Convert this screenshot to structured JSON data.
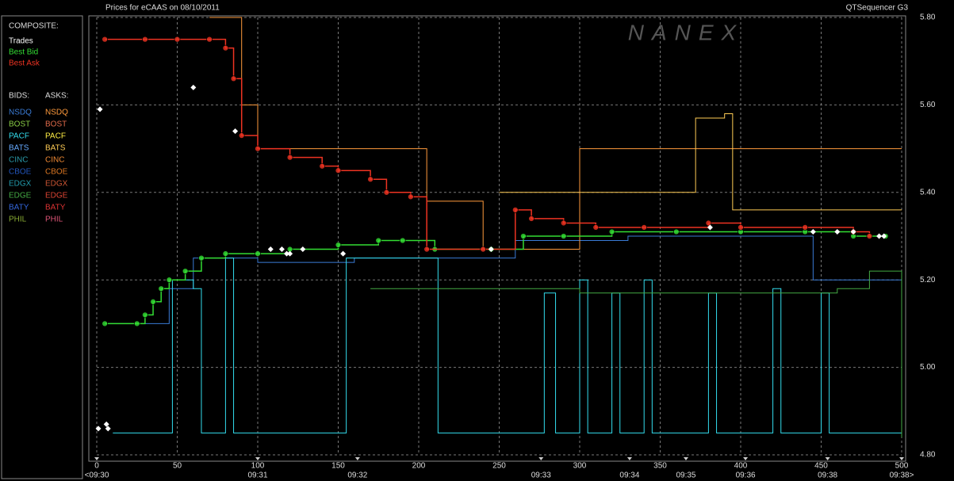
{
  "chart_data": {
    "type": "line",
    "title": "Prices for  eCAAS  on  08/10/2011",
    "subtitle": "QTSequencer G3",
    "watermark": "NANEX",
    "xlim": [
      0,
      500
    ],
    "xticks": [
      0,
      50,
      100,
      150,
      200,
      250,
      300,
      350,
      400,
      450,
      500
    ],
    "time_labels": [
      {
        "value": 0,
        "label": "<09:30"
      },
      {
        "value": 100,
        "label": "09:31"
      },
      {
        "value": 162,
        "label": "09:32"
      },
      {
        "value": 276,
        "label": "09:33"
      },
      {
        "value": 331,
        "label": "09:34"
      },
      {
        "value": 366,
        "label": "09:35"
      },
      {
        "value": 403,
        "label": "09:36"
      },
      {
        "value": 454,
        "label": "09:38"
      },
      {
        "value": 500,
        "label": "09:38>"
      }
    ],
    "ylim": [
      4.8,
      5.8
    ],
    "yticks": [
      {
        "value": 4.8,
        "label": "4.80"
      },
      {
        "value": 5.0,
        "label": "5.00"
      },
      {
        "value": 5.2,
        "label": "5.20"
      },
      {
        "value": 5.4,
        "label": "5.40"
      },
      {
        "value": 5.6,
        "label": "5.60"
      },
      {
        "value": 5.8,
        "label": "5.80"
      }
    ],
    "grid": true,
    "legend_heading": "COMPOSITE:",
    "bids_heading": "BIDS:",
    "asks_heading": "ASKS:",
    "series": [
      {
        "name": "Trades",
        "type": "scatter",
        "color": "#ffffff",
        "x": [
          1,
          6,
          7,
          2,
          60,
          86,
          108,
          115,
          118,
          120,
          128,
          153,
          245,
          381,
          445,
          460,
          470,
          486,
          489
        ],
        "values": [
          4.86,
          4.87,
          4.86,
          5.59,
          5.64,
          5.54,
          5.27,
          5.27,
          5.26,
          5.26,
          5.27,
          5.26,
          5.27,
          5.32,
          5.31,
          5.31,
          5.31,
          5.3,
          5.3
        ]
      },
      {
        "name": "Best Bid",
        "type": "line",
        "color": "#33dd33",
        "markers": true,
        "x": [
          5,
          25,
          30,
          35,
          40,
          45,
          55,
          65,
          80,
          100,
          120,
          150,
          175,
          190,
          210,
          245,
          265,
          290,
          320,
          360,
          400,
          440,
          470,
          490
        ],
        "values": [
          5.1,
          5.1,
          5.12,
          5.15,
          5.18,
          5.2,
          5.22,
          5.25,
          5.26,
          5.26,
          5.27,
          5.28,
          5.29,
          5.29,
          5.27,
          5.27,
          5.3,
          5.3,
          5.31,
          5.31,
          5.31,
          5.31,
          5.3,
          5.3
        ]
      },
      {
        "name": "Best Ask",
        "type": "line",
        "color": "#ee3322",
        "markers": true,
        "x": [
          5,
          30,
          50,
          70,
          80,
          85,
          90,
          100,
          120,
          140,
          150,
          170,
          180,
          195,
          205,
          240,
          260,
          270,
          290,
          310,
          340,
          380,
          400,
          440,
          470,
          480
        ],
        "values": [
          5.75,
          5.75,
          5.75,
          5.75,
          5.73,
          5.66,
          5.53,
          5.5,
          5.48,
          5.46,
          5.45,
          5.43,
          5.4,
          5.39,
          5.27,
          5.27,
          5.36,
          5.34,
          5.33,
          5.32,
          5.32,
          5.33,
          5.32,
          5.32,
          5.31,
          5.3
        ]
      }
    ],
    "exchanges": [
      {
        "name": "NSDQ",
        "bid_color": "#3a7bd5",
        "ask_color": "#ff9a3c",
        "bid": {
          "x": [
            5,
            40,
            45,
            60,
            100,
            160,
            250,
            260,
            300,
            330,
            440,
            445,
            500
          ],
          "values": [
            5.1,
            5.1,
            5.18,
            5.25,
            5.24,
            5.25,
            5.25,
            5.29,
            5.29,
            5.3,
            5.3,
            5.2,
            5.2
          ]
        },
        "ask": {
          "x": [
            70,
            85,
            90,
            100,
            200,
            205,
            240,
            300,
            400,
            500
          ],
          "values": [
            5.8,
            5.8,
            5.6,
            5.5,
            5.5,
            5.38,
            5.27,
            5.5,
            5.5,
            5.5
          ]
        }
      },
      {
        "name": "BOST",
        "bid_color": "#88cc44",
        "ask_color": "#e06a4a"
      },
      {
        "name": "PACF",
        "bid_color": "#33ddee",
        "ask_color": "#ffee44",
        "bid": {
          "x": [
            10,
            45,
            47,
            60,
            65,
            80,
            85,
            150,
            155,
            210,
            212,
            275,
            278,
            285,
            300,
            305,
            320,
            325,
            340,
            345,
            380,
            385,
            420,
            425,
            450,
            455,
            500
          ],
          "values": [
            4.85,
            4.85,
            5.2,
            5.18,
            4.85,
            5.25,
            4.85,
            4.85,
            5.25,
            5.25,
            4.85,
            4.85,
            5.17,
            4.85,
            5.2,
            4.85,
            5.17,
            4.85,
            5.2,
            4.85,
            5.17,
            4.85,
            5.18,
            4.85,
            5.17,
            4.85,
            5.0
          ]
        }
      },
      {
        "name": "BATS",
        "bid_color": "#66aaff",
        "ask_color": "#ffcc55",
        "ask": {
          "x": [
            250,
            370,
            372,
            390,
            395,
            500
          ],
          "values": [
            5.4,
            5.4,
            5.57,
            5.58,
            5.36,
            5.36
          ]
        }
      },
      {
        "name": "CINC",
        "bid_color": "#2a9aaa",
        "ask_color": "#ee8833"
      },
      {
        "name": "CBOE",
        "bid_color": "#2255bb",
        "ask_color": "#dd7722"
      },
      {
        "name": "EDGX",
        "bid_color": "#2299aa",
        "ask_color": "#cc5533"
      },
      {
        "name": "EDGE",
        "bid_color": "#44aa44",
        "ask_color": "#dd4433",
        "bid": {
          "x": [
            170,
            300,
            460,
            480,
            500
          ],
          "values": [
            5.18,
            5.17,
            5.18,
            5.22,
            4.84
          ]
        }
      },
      {
        "name": "BATY",
        "bid_color": "#3366dd",
        "ask_color": "#dd3333"
      },
      {
        "name": "PHIL",
        "bid_color": "#88aa33",
        "ask_color": "#dd5577"
      }
    ]
  }
}
